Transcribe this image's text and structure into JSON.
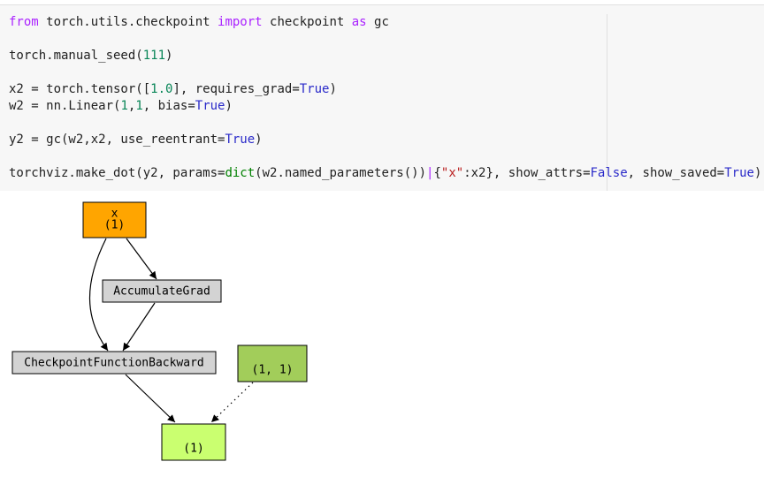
{
  "code": {
    "lines": [
      [
        {
          "text": "from",
          "color": "#aa22ff"
        },
        {
          "text": " torch.utils.checkpoint ",
          "color": "#212121"
        },
        {
          "text": "import",
          "color": "#aa22ff"
        },
        {
          "text": " checkpoint ",
          "color": "#212121"
        },
        {
          "text": "as",
          "color": "#aa22ff"
        },
        {
          "text": " gc",
          "color": "#212121"
        }
      ],
      [],
      [
        {
          "text": "torch.manual_seed(",
          "color": "#212121"
        },
        {
          "text": "111",
          "color": "#098658"
        },
        {
          "text": ")",
          "color": "#212121"
        }
      ],
      [],
      [
        {
          "text": "x2 = torch.tensor([",
          "color": "#212121"
        },
        {
          "text": "1.0",
          "color": "#098658"
        },
        {
          "text": "], requires_grad=",
          "color": "#212121"
        },
        {
          "text": "True",
          "color": "#2a2ac9"
        },
        {
          "text": ")",
          "color": "#212121"
        }
      ],
      [
        {
          "text": "w2 = nn.Linear(",
          "color": "#212121"
        },
        {
          "text": "1",
          "color": "#098658"
        },
        {
          "text": ",",
          "color": "#212121"
        },
        {
          "text": "1",
          "color": "#098658"
        },
        {
          "text": ", bias=",
          "color": "#212121"
        },
        {
          "text": "True",
          "color": "#2a2ac9"
        },
        {
          "text": ")",
          "color": "#212121"
        }
      ],
      [],
      [
        {
          "text": "y2 = gc(w2,x2, use_reentrant=",
          "color": "#212121"
        },
        {
          "text": "True",
          "color": "#2a2ac9"
        },
        {
          "text": ")",
          "color": "#212121"
        }
      ],
      [],
      [
        {
          "text": "torchviz.make_dot(y2, params=",
          "color": "#212121"
        },
        {
          "text": "dict",
          "color": "#008000"
        },
        {
          "text": "(w2.named_parameters())",
          "color": "#212121"
        },
        {
          "text": "|",
          "color": "#aa22ff"
        },
        {
          "text": "{",
          "color": "#212121"
        },
        {
          "text": "\"x\"",
          "color": "#ba2121"
        },
        {
          "text": ":x2}, show_attrs=",
          "color": "#212121"
        },
        {
          "text": "False",
          "color": "#2a2ac9"
        },
        {
          "text": ", show_saved=",
          "color": "#212121"
        },
        {
          "text": "True",
          "color": "#2a2ac9"
        },
        {
          "text": ")",
          "color": "#212121"
        }
      ]
    ]
  },
  "graph": {
    "nodes": [
      {
        "label": [
          "x",
          "(1)"
        ],
        "color": "#ffa500"
      },
      {
        "label": [
          "AccumulateGrad"
        ],
        "color": "#d3d3d3"
      },
      {
        "label": [
          "CheckpointFunctionBackward"
        ],
        "color": "#d3d3d3"
      },
      {
        "label": [
          "(1, 1)"
        ],
        "color": "#a2cd5a"
      },
      {
        "label": [
          "(1)"
        ],
        "color": "#caff70"
      }
    ]
  }
}
